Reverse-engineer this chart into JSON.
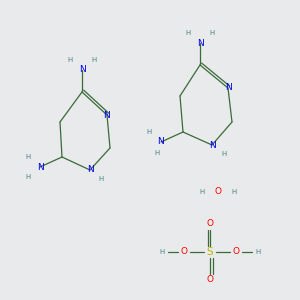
{
  "background_color": "#e9eaeb",
  "atom_colors": {
    "N": "#0000ee",
    "O": "#ff0000",
    "S": "#bbbb00",
    "H": "#4a8080",
    "C": "#2d5a2d"
  },
  "bond_color": "#3a6a3a",
  "font_size_atom": 6.5,
  "font_size_h": 5.0,
  "lw": 0.9
}
